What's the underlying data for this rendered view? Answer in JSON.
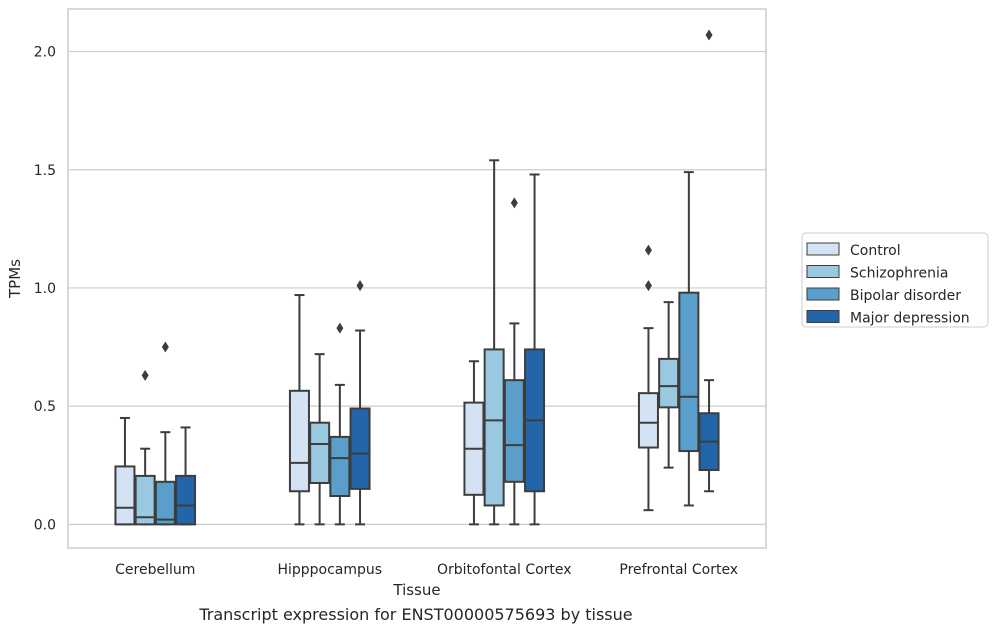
{
  "chart_data": {
    "type": "box",
    "xlabel": "Tissue",
    "ylabel": "TPMs",
    "categories": [
      "Cerebellum",
      "Hipppocampus",
      "Orbitofontal Cortex",
      "Prefrontal Cortex"
    ],
    "ylim": [
      -0.1,
      2.18
    ],
    "yticks": [
      "0.0",
      "0.5",
      "1.0",
      "1.5",
      "2.0"
    ],
    "ytick_values": [
      0,
      0.5,
      1.0,
      1.5,
      2.0
    ],
    "grid": true,
    "legend_position": "right",
    "series": [
      {
        "name": "Control",
        "color": "#d3e3f3",
        "boxes": [
          {
            "whislo": 0,
            "q1": 0,
            "median": 0.07,
            "q3": 0.245,
            "whishi": 0.45,
            "fliers": []
          },
          {
            "whislo": 0,
            "q1": 0.14,
            "median": 0.26,
            "q3": 0.565,
            "whishi": 0.97,
            "fliers": []
          },
          {
            "whislo": 0,
            "q1": 0.125,
            "median": 0.32,
            "q3": 0.515,
            "whishi": 0.69,
            "fliers": []
          },
          {
            "whislo": 0.06,
            "q1": 0.325,
            "median": 0.43,
            "q3": 0.555,
            "whishi": 0.83,
            "fliers": [
              1.01,
              1.16
            ]
          }
        ]
      },
      {
        "name": "Schizophrenia",
        "color": "#9ac8e0",
        "boxes": [
          {
            "whislo": 0,
            "q1": 0,
            "median": 0.03,
            "q3": 0.205,
            "whishi": 0.32,
            "fliers": [
              0.63
            ]
          },
          {
            "whislo": 0,
            "q1": 0.175,
            "median": 0.34,
            "q3": 0.43,
            "whishi": 0.72,
            "fliers": []
          },
          {
            "whislo": 0,
            "q1": 0.08,
            "median": 0.44,
            "q3": 0.74,
            "whishi": 1.54,
            "fliers": []
          },
          {
            "whislo": 0.24,
            "q1": 0.495,
            "median": 0.585,
            "q3": 0.7,
            "whishi": 0.94,
            "fliers": []
          }
        ]
      },
      {
        "name": "Bipolar disorder",
        "color": "#5a9fcc",
        "boxes": [
          {
            "whislo": 0,
            "q1": 0,
            "median": 0.02,
            "q3": 0.18,
            "whishi": 0.39,
            "fliers": [
              0.75
            ]
          },
          {
            "whislo": 0,
            "q1": 0.12,
            "median": 0.28,
            "q3": 0.37,
            "whishi": 0.59,
            "fliers": [
              0.83
            ]
          },
          {
            "whislo": 0,
            "q1": 0.18,
            "median": 0.335,
            "q3": 0.61,
            "whishi": 0.85,
            "fliers": [
              1.36
            ]
          },
          {
            "whislo": 0.08,
            "q1": 0.31,
            "median": 0.54,
            "q3": 0.98,
            "whishi": 1.49,
            "fliers": []
          }
        ]
      },
      {
        "name": "Major depression",
        "color": "#2265a8",
        "boxes": [
          {
            "whislo": 0,
            "q1": 0,
            "median": 0.08,
            "q3": 0.205,
            "whishi": 0.41,
            "fliers": []
          },
          {
            "whislo": 0,
            "q1": 0.15,
            "median": 0.3,
            "q3": 0.49,
            "whishi": 0.82,
            "fliers": [
              1.01
            ]
          },
          {
            "whislo": 0,
            "q1": 0.14,
            "median": 0.44,
            "q3": 0.74,
            "whishi": 1.48,
            "fliers": []
          },
          {
            "whislo": 0.14,
            "q1": 0.23,
            "median": 0.35,
            "q3": 0.47,
            "whishi": 0.61,
            "fliers": [
              2.07
            ]
          }
        ]
      }
    ]
  },
  "caption": "Transcript expression for ENST00000575693 by tissue"
}
